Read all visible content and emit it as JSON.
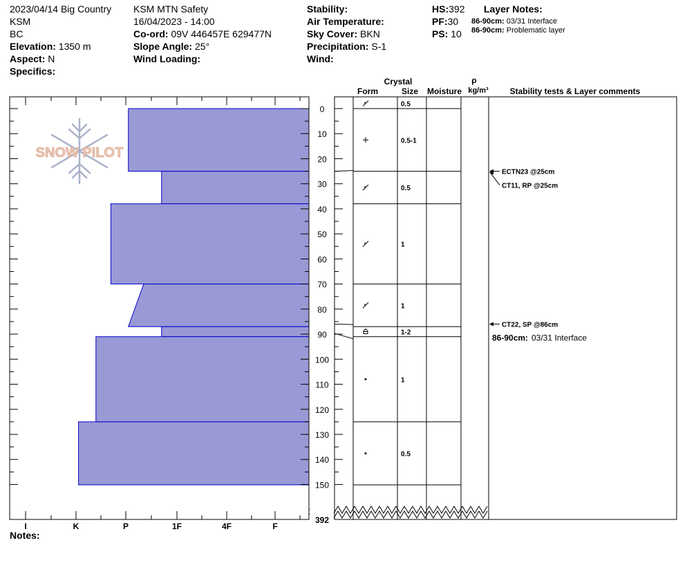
{
  "header": {
    "col1": {
      "line1": "2023/04/14 Big Country",
      "line2": "KSM",
      "line3": "BC",
      "elevation_label": "Elevation:",
      "elevation_value": "1350 m",
      "aspect_label": "Aspect:",
      "aspect_value": "N",
      "specifics_label": "Specifics:"
    },
    "col2": {
      "line1": "KSM MTN Safety",
      "line2": "16/04/2023 - 14:00",
      "coord_label": "Co-ord:",
      "coord_value": "09V 446457E 629477N",
      "slope_label": "Slope Angle:",
      "slope_value": "25°",
      "wind_loading_label": "Wind Loading:"
    },
    "col3": {
      "stability_label": "Stability:",
      "air_temp_label": "Air Temperature:",
      "sky_label": "Sky Cover:",
      "sky_value": "BKN",
      "precip_label": "Precipitation:",
      "precip_value": "S-1",
      "wind_label": "Wind:"
    },
    "col4": {
      "hs_label": "HS:",
      "hs_value": "392",
      "pf_label": "PF:",
      "pf_value": "30",
      "ps_label": "PS:",
      "ps_value": "10",
      "layer_notes_label": "Layer Notes:",
      "layer_notes": [
        {
          "depth": "86-90cm:",
          "text": "03/31 Interface"
        },
        {
          "depth": "86-90cm:",
          "text": "Problematic layer"
        }
      ]
    }
  },
  "logo": {
    "text": "SNOW PILOT"
  },
  "columns": {
    "crystal": "Crystal",
    "form": "Form",
    "size": "Size",
    "moisture": "Moisture",
    "rho": "ρ",
    "density_unit": "kg/m³",
    "comments": "Stability tests & Layer comments"
  },
  "notes_label": "Notes:",
  "colors": {
    "hardness_fill": "#9999d6",
    "hardness_stroke": "#0000cc"
  },
  "chart_data": {
    "type": "snow-profile",
    "depth_axis": {
      "unit": "cm",
      "min": 0,
      "max": 150,
      "ticks": [
        0,
        10,
        20,
        30,
        40,
        50,
        60,
        70,
        80,
        90,
        100,
        110,
        120,
        130,
        140,
        150
      ],
      "total_label": "392"
    },
    "hardness_axis": {
      "labels": [
        "I",
        "K",
        "P",
        "1F",
        "4F",
        "F"
      ]
    },
    "hardness_profile": [
      {
        "top": 0,
        "bottom": 25,
        "hardness_top": 2.95,
        "hardness_bottom": 2.95
      },
      {
        "top": 25,
        "bottom": 38,
        "hardness_top": 2.3,
        "hardness_bottom": 2.3
      },
      {
        "top": 38,
        "bottom": 70,
        "hardness_top": 3.3,
        "hardness_bottom": 3.3
      },
      {
        "top": 70,
        "bottom": 87,
        "hardness_top": 2.65,
        "hardness_bottom": 2.95
      },
      {
        "top": 87,
        "bottom": 91,
        "hardness_top": 2.3,
        "hardness_bottom": 2.3
      },
      {
        "top": 91,
        "bottom": 125,
        "hardness_top": 3.6,
        "hardness_bottom": 3.6
      },
      {
        "top": 125,
        "bottom": 152,
        "hardness_top": 3.95,
        "hardness_bottom": 3.95
      }
    ],
    "layer_boundaries": [
      0,
      25,
      38,
      70,
      87,
      91,
      125,
      152
    ],
    "layers": [
      {
        "form": "decomposed",
        "size": "0.5",
        "top": -5,
        "bottom": 0
      },
      {
        "form": "precipitation",
        "size": "0.5-1",
        "top": 0,
        "bottom": 25
      },
      {
        "form": "decomposed",
        "size": "0.5",
        "top": 25,
        "bottom": 38
      },
      {
        "form": "decomposed",
        "size": "1",
        "top": 38,
        "bottom": 70
      },
      {
        "form": "decomposed",
        "size": "1",
        "top": 70,
        "bottom": 87
      },
      {
        "form": "depth-hoar",
        "size": "1-2",
        "top": 87,
        "bottom": 91
      },
      {
        "form": "rounded",
        "size": "1",
        "top": 91,
        "bottom": 125
      },
      {
        "form": "rounded",
        "size": "0.5",
        "top": 125,
        "bottom": 152
      }
    ],
    "stability_tests": [
      {
        "label": "ECTN23 @25cm",
        "depth": 25
      },
      {
        "label": "CT11, RP @25cm",
        "depth": 25
      },
      {
        "label": "CT22, SP @86cm",
        "depth": 86
      }
    ],
    "layer_comments": [
      {
        "depth_label": "86-90cm:",
        "text": "03/31 Interface",
        "depth": 86
      }
    ]
  }
}
